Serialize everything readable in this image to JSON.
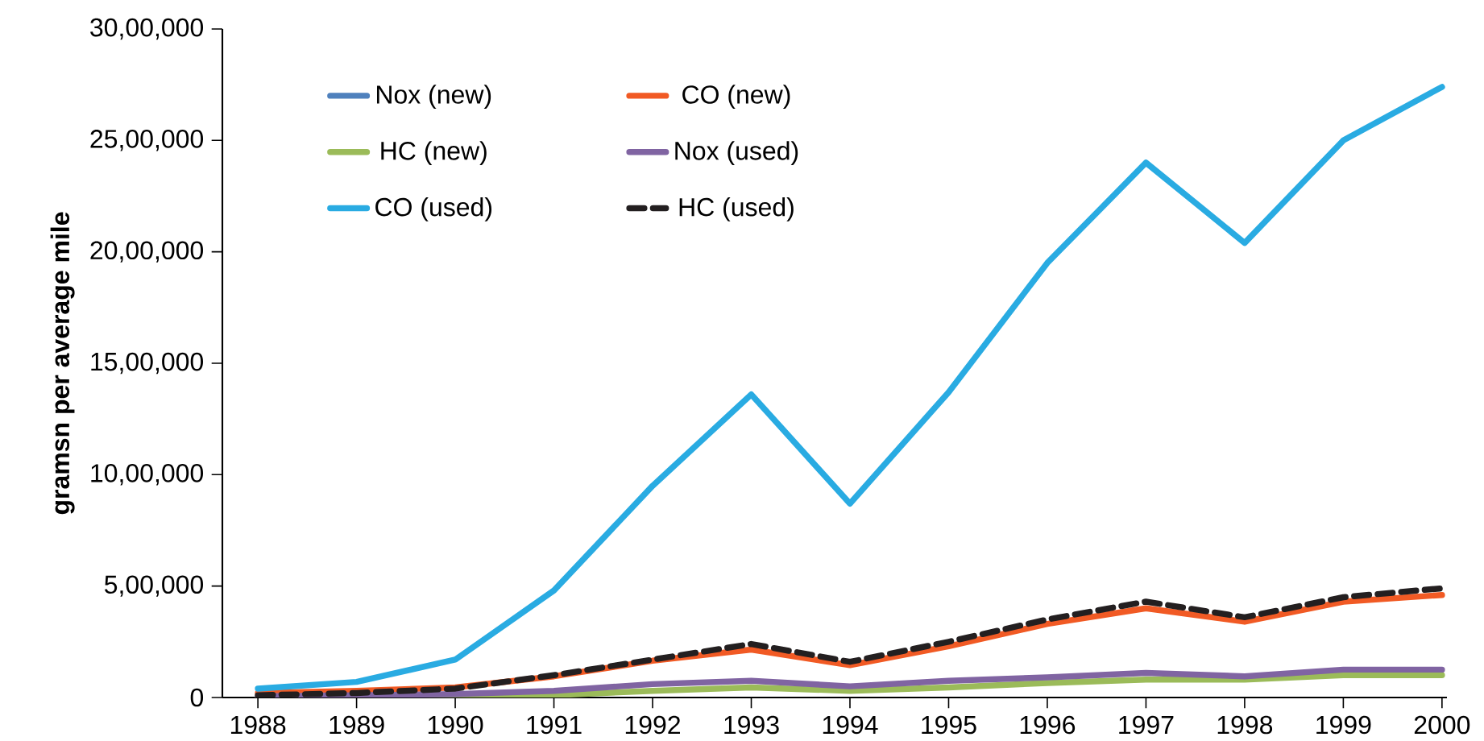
{
  "chart_data": {
    "type": "line",
    "ylabel": "gramsn per average mile",
    "categories": [
      "1988",
      "1989",
      "1990",
      "1991",
      "1992",
      "1993",
      "1994",
      "1995",
      "1996",
      "1997",
      "1998",
      "1999",
      "2000"
    ],
    "series": [
      {
        "name": "Nox (new)",
        "color": "#4f81bd",
        "values": [
          null,
          null,
          null,
          null,
          null,
          null,
          null,
          null,
          null,
          null,
          null,
          null,
          null
        ]
      },
      {
        "name": "CO (new)",
        "color": "#f15a24",
        "values": [
          20000,
          30000,
          45000,
          95000,
          165000,
          215000,
          145000,
          230000,
          330000,
          400000,
          340000,
          430000,
          460000
        ]
      },
      {
        "name": "HC (new)",
        "color": "#9bbb59",
        "values": [
          0,
          0,
          0,
          10000,
          30000,
          45000,
          30000,
          45000,
          65000,
          80000,
          80000,
          100000,
          100000
        ]
      },
      {
        "name": "Nox (used)",
        "color": "#8064a2",
        "values": [
          5000,
          10000,
          15000,
          30000,
          60000,
          75000,
          50000,
          75000,
          90000,
          110000,
          95000,
          125000,
          125000
        ]
      },
      {
        "name": "CO (used)",
        "color": "#29abe2",
        "values": [
          40000,
          70000,
          170000,
          480000,
          950000,
          1360000,
          870000,
          1370000,
          1950000,
          2400000,
          2040000,
          2500000,
          2740000
        ]
      },
      {
        "name": "HC (used)",
        "color": "#231f20",
        "line_style": "dashed",
        "values": [
          10000,
          20000,
          40000,
          100000,
          170000,
          240000,
          160000,
          250000,
          350000,
          430000,
          360000,
          450000,
          490000
        ]
      }
    ],
    "ylim": [
      0,
      3000000
    ],
    "yticks": [
      0,
      {
        "value": 500000,
        "label": "5,00,000"
      },
      {
        "value": 1000000,
        "label": "10,00,000"
      },
      {
        "value": 1500000,
        "label": "15,00,000"
      },
      {
        "value": 2000000,
        "label": "20,00,000"
      },
      {
        "value": 2500000,
        "label": "25,00,000"
      },
      {
        "value": 3000000,
        "label": "30,00,000"
      }
    ],
    "legend": "top left",
    "grid": false,
    "marker": "none",
    "line_style": "solid"
  }
}
